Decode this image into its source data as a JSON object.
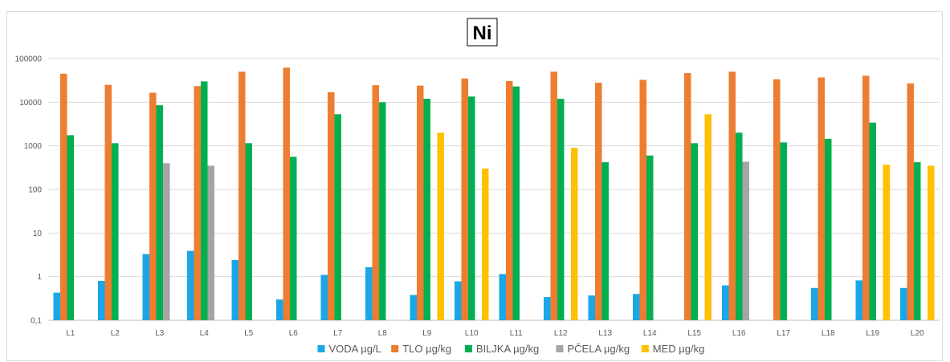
{
  "chart_data": {
    "type": "bar",
    "title": "Ni",
    "xlabel": "",
    "ylabel": "",
    "yscale": "log",
    "ylim": [
      0.1,
      100000
    ],
    "yticks": [
      "0,1",
      "1",
      "10",
      "100",
      "1000",
      "10000",
      "100000"
    ],
    "grid": true,
    "legend_position": "bottom",
    "categories": [
      "L1",
      "L2",
      "L3",
      "L4",
      "L5",
      "L6",
      "L7",
      "L8",
      "L9",
      "L10",
      "L11",
      "L12",
      "L13",
      "L14",
      "L15",
      "L16",
      "L17",
      "L18",
      "L19",
      "L20"
    ],
    "series": [
      {
        "name": "VODA µg/L",
        "color": "#1aa7e8",
        "values": [
          0.43,
          0.8,
          3.3,
          3.9,
          2.4,
          0.3,
          1.1,
          1.65,
          0.38,
          0.78,
          1.15,
          0.34,
          0.37,
          0.4,
          null,
          0.63,
          null,
          0.55,
          0.82,
          0.55
        ]
      },
      {
        "name": "TLO µg/kg",
        "color": "#ed7d31",
        "values": [
          45000,
          25000,
          16500,
          23500,
          50000,
          62000,
          17000,
          24500,
          24000,
          35000,
          30500,
          50000,
          28000,
          32500,
          46500,
          50000,
          33500,
          37000,
          40500,
          27000
        ]
      },
      {
        "name": "BILJKA µg/kg",
        "color": "#00b050",
        "values": [
          1750,
          1150,
          8500,
          30000,
          1150,
          560,
          5300,
          10000,
          12000,
          13500,
          23000,
          12000,
          420,
          600,
          1150,
          2000,
          1200,
          1450,
          3400,
          420
        ]
      },
      {
        "name": "PČELA µg/kg",
        "color": "#a5a5a5",
        "values": [
          null,
          null,
          400,
          350,
          null,
          null,
          null,
          null,
          null,
          null,
          null,
          null,
          null,
          null,
          null,
          430,
          null,
          null,
          null,
          null
        ]
      },
      {
        "name": "MED µg/kg",
        "color": "#ffc000",
        "values": [
          null,
          null,
          null,
          null,
          null,
          null,
          null,
          null,
          2000,
          300,
          null,
          900,
          null,
          null,
          5300,
          null,
          null,
          null,
          370,
          350
        ]
      }
    ]
  }
}
